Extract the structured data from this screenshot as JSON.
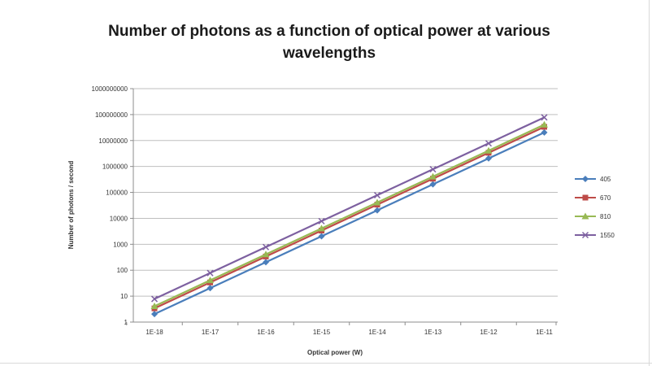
{
  "chart_data": {
    "type": "line",
    "title": "Number of photons as a function of optical power at various wavelengths",
    "title_lines": [
      "Number of photons as a function of optical power at various",
      "wavelengths"
    ],
    "xlabel": "Optical power (W)",
    "ylabel": "Number of photons / second",
    "categories": [
      "1E-18",
      "1E-17",
      "1E-16",
      "1E-15",
      "1E-14",
      "1E-13",
      "1E-12",
      "1E-11"
    ],
    "y_scale": "log",
    "ylim": [
      1,
      1000000000
    ],
    "y_ticks": [
      "1",
      "10",
      "100",
      "1000",
      "10000",
      "100000",
      "1000000",
      "10000000",
      "100000000",
      "1000000000"
    ],
    "grid": true,
    "legend_position": "right",
    "series": [
      {
        "name": "405",
        "color": "#4a7ebb",
        "marker": "diamond",
        "values": [
          2.04,
          20.4,
          204,
          2040,
          20400,
          204000,
          2040000,
          20400000
        ]
      },
      {
        "name": "670",
        "color": "#be4b48",
        "marker": "square",
        "values": [
          3.37,
          33.7,
          337,
          3370,
          33700,
          337000,
          3370000,
          33700000
        ]
      },
      {
        "name": "810",
        "color": "#98b954",
        "marker": "triangle",
        "values": [
          4.08,
          40.8,
          408,
          4080,
          40800,
          408000,
          4080000,
          40800000
        ]
      },
      {
        "name": "1550",
        "color": "#7d60a0",
        "marker": "x",
        "values": [
          7.8,
          78,
          780,
          7800,
          78000,
          780000,
          7800000,
          78000000
        ]
      }
    ]
  }
}
